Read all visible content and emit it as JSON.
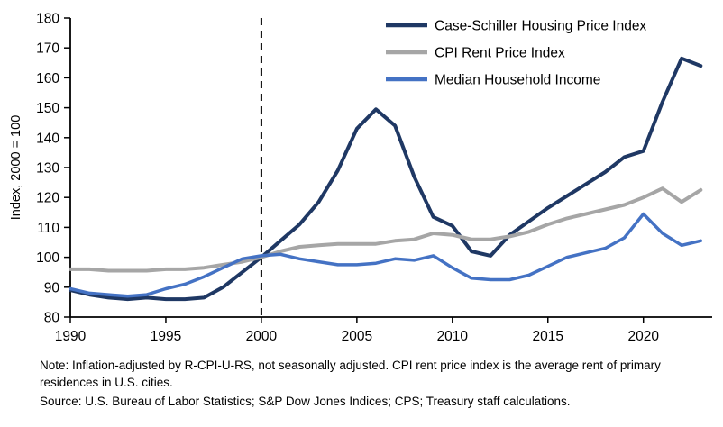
{
  "notes": {
    "note": "Note: Inflation-adjusted by R-CPI-U-RS, not seasonally adjusted. CPI rent price index is the average rent of primary residences in U.S. cities.",
    "source": "Source: U.S. Bureau of Labor Statistics; S&P Dow Jones Indices; CPS; Treasury staff calculations."
  },
  "chart_data": {
    "type": "line",
    "title": "",
    "xlabel": "",
    "ylabel": "Index, 2000 = 100",
    "xlim": [
      1990,
      2023.6
    ],
    "ylim": [
      80,
      180
    ],
    "x_ticks": [
      1990,
      1995,
      2000,
      2005,
      2010,
      2015,
      2020
    ],
    "y_ticks": [
      80,
      90,
      100,
      110,
      120,
      130,
      140,
      150,
      160,
      170,
      180
    ],
    "grid": false,
    "legend_position": "top-right-inside",
    "reference_line_x": 2000,
    "reference_line_style": "dashed-black-vertical",
    "x": [
      1990,
      1991,
      1992,
      1993,
      1994,
      1995,
      1996,
      1997,
      1998,
      1999,
      2000,
      2001,
      2002,
      2003,
      2004,
      2005,
      2006,
      2007,
      2008,
      2009,
      2010,
      2011,
      2012,
      2013,
      2014,
      2015,
      2016,
      2017,
      2018,
      2019,
      2020,
      2021,
      2022,
      2023
    ],
    "series": [
      {
        "name": "Case-Schiller Housing Price Index",
        "color": "#1f3864",
        "values": [
          89,
          87.5,
          86.5,
          86,
          86.5,
          86,
          86,
          86.5,
          90,
          95,
          100,
          105.5,
          111,
          118.5,
          129,
          143,
          149.5,
          144,
          127,
          113.5,
          110.5,
          102,
          100.5,
          107.5,
          112,
          116.5,
          120.5,
          124.5,
          128.5,
          133.5,
          135.5,
          152,
          166.5,
          164
        ]
      },
      {
        "name": "CPI Rent Price Index",
        "color": "#a6a6a6",
        "values": [
          96,
          96,
          95.5,
          95.5,
          95.5,
          96,
          96,
          96.5,
          97.5,
          98.5,
          100,
          102,
          103.5,
          104,
          104.5,
          104.5,
          104.5,
          105.5,
          106,
          108,
          107.5,
          106,
          106,
          107,
          108.5,
          111,
          113,
          114.5,
          116,
          117.5,
          120,
          123,
          118.5,
          122.5
        ]
      },
      {
        "name": "Median Household Income",
        "color": "#4472c4",
        "values": [
          89.5,
          88,
          87.5,
          87,
          87.5,
          89.5,
          91,
          93.5,
          96.5,
          99.5,
          100.5,
          101,
          99.5,
          98.5,
          97.5,
          97.5,
          98,
          99.5,
          99,
          100.5,
          96.5,
          93,
          92.5,
          92.5,
          94,
          97,
          100,
          101.5,
          103,
          106.5,
          114.5,
          108,
          104,
          105.5
        ]
      }
    ]
  }
}
